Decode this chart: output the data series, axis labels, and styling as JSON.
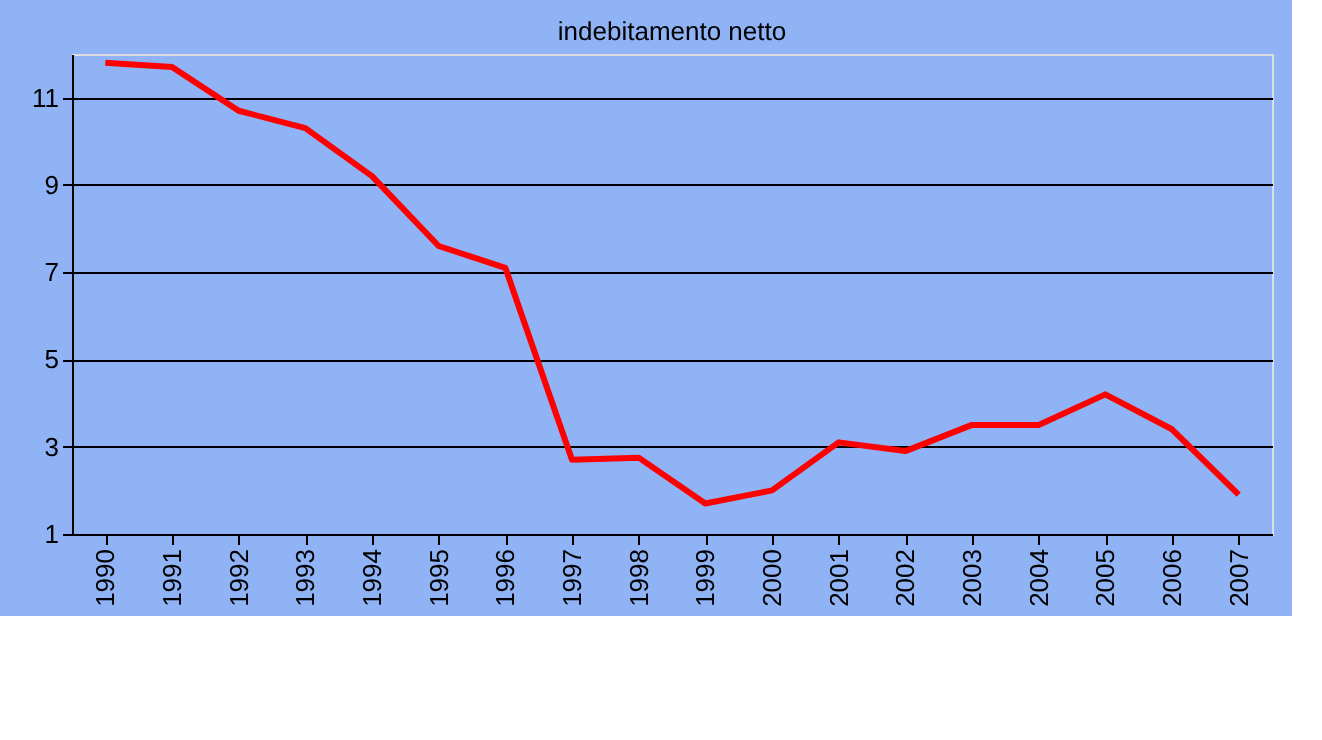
{
  "chart_data": {
    "type": "line",
    "title": "indebitamento netto",
    "categories": [
      "1990",
      "1991",
      "1992",
      "1993",
      "1994",
      "1995",
      "1996",
      "1997",
      "1998",
      "1999",
      "2000",
      "2001",
      "2002",
      "2003",
      "2004",
      "2005",
      "2006",
      "2007"
    ],
    "series": [
      {
        "color": "#ff0000",
        "values": [
          11.8,
          11.7,
          10.7,
          10.3,
          9.2,
          7.6,
          7.1,
          2.7,
          2.75,
          1.7,
          2.0,
          3.1,
          2.9,
          3.5,
          3.5,
          4.2,
          3.4,
          1.9
        ]
      }
    ],
    "ylim": [
      1,
      12
    ],
    "yticks": [
      1,
      3,
      5,
      7,
      9,
      11
    ],
    "grid": "y",
    "legend": false,
    "marker": "none",
    "line_style": "solid"
  }
}
